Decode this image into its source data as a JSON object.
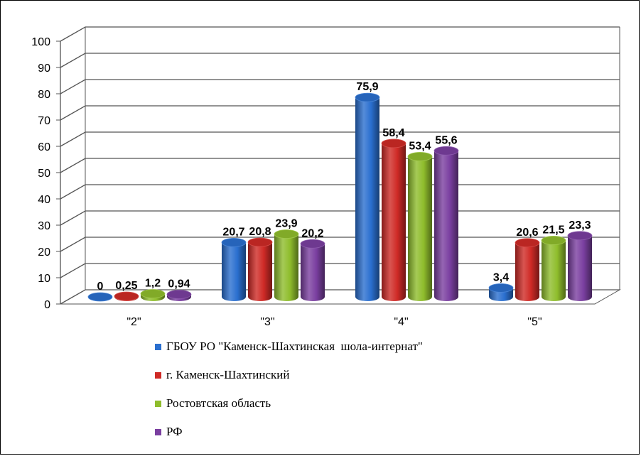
{
  "chart_data": {
    "type": "bar",
    "categories": [
      "\"2\"",
      "\"3\"",
      "\"4\"",
      "\"5\""
    ],
    "series": [
      {
        "name": "ГБОУ РО \"Каменск-Шахтинская  шола-интернат\"",
        "color": "#2a6fcf",
        "values": [
          0,
          20.7,
          75.9,
          3.4
        ],
        "labels": [
          "0",
          "20,7",
          "75,9",
          "3,4"
        ]
      },
      {
        "name": "г. Каменск-Шахтинский",
        "color": "#cf2a26",
        "values": [
          0.25,
          20.8,
          58.4,
          20.6
        ],
        "labels": [
          "0,25",
          "20,8",
          "58,4",
          "20,6"
        ]
      },
      {
        "name": "Ростовтская область",
        "color": "#8fbd2c",
        "values": [
          1.2,
          23.9,
          53.4,
          21.5
        ],
        "labels": [
          "1,2",
          "23,9",
          "53,4",
          "21,5"
        ]
      },
      {
        "name": "РФ",
        "color": "#7a3fa0",
        "values": [
          0.94,
          20.2,
          55.6,
          23.3
        ],
        "labels": [
          "0,94",
          "20,2",
          "55,6",
          "23,3"
        ]
      }
    ],
    "yticks": [
      "0",
      "10",
      "20",
      "30",
      "40",
      "50",
      "60",
      "70",
      "80",
      "90",
      "100"
    ],
    "ylim": [
      0,
      100
    ],
    "grid": true,
    "legend_position": "bottom"
  }
}
